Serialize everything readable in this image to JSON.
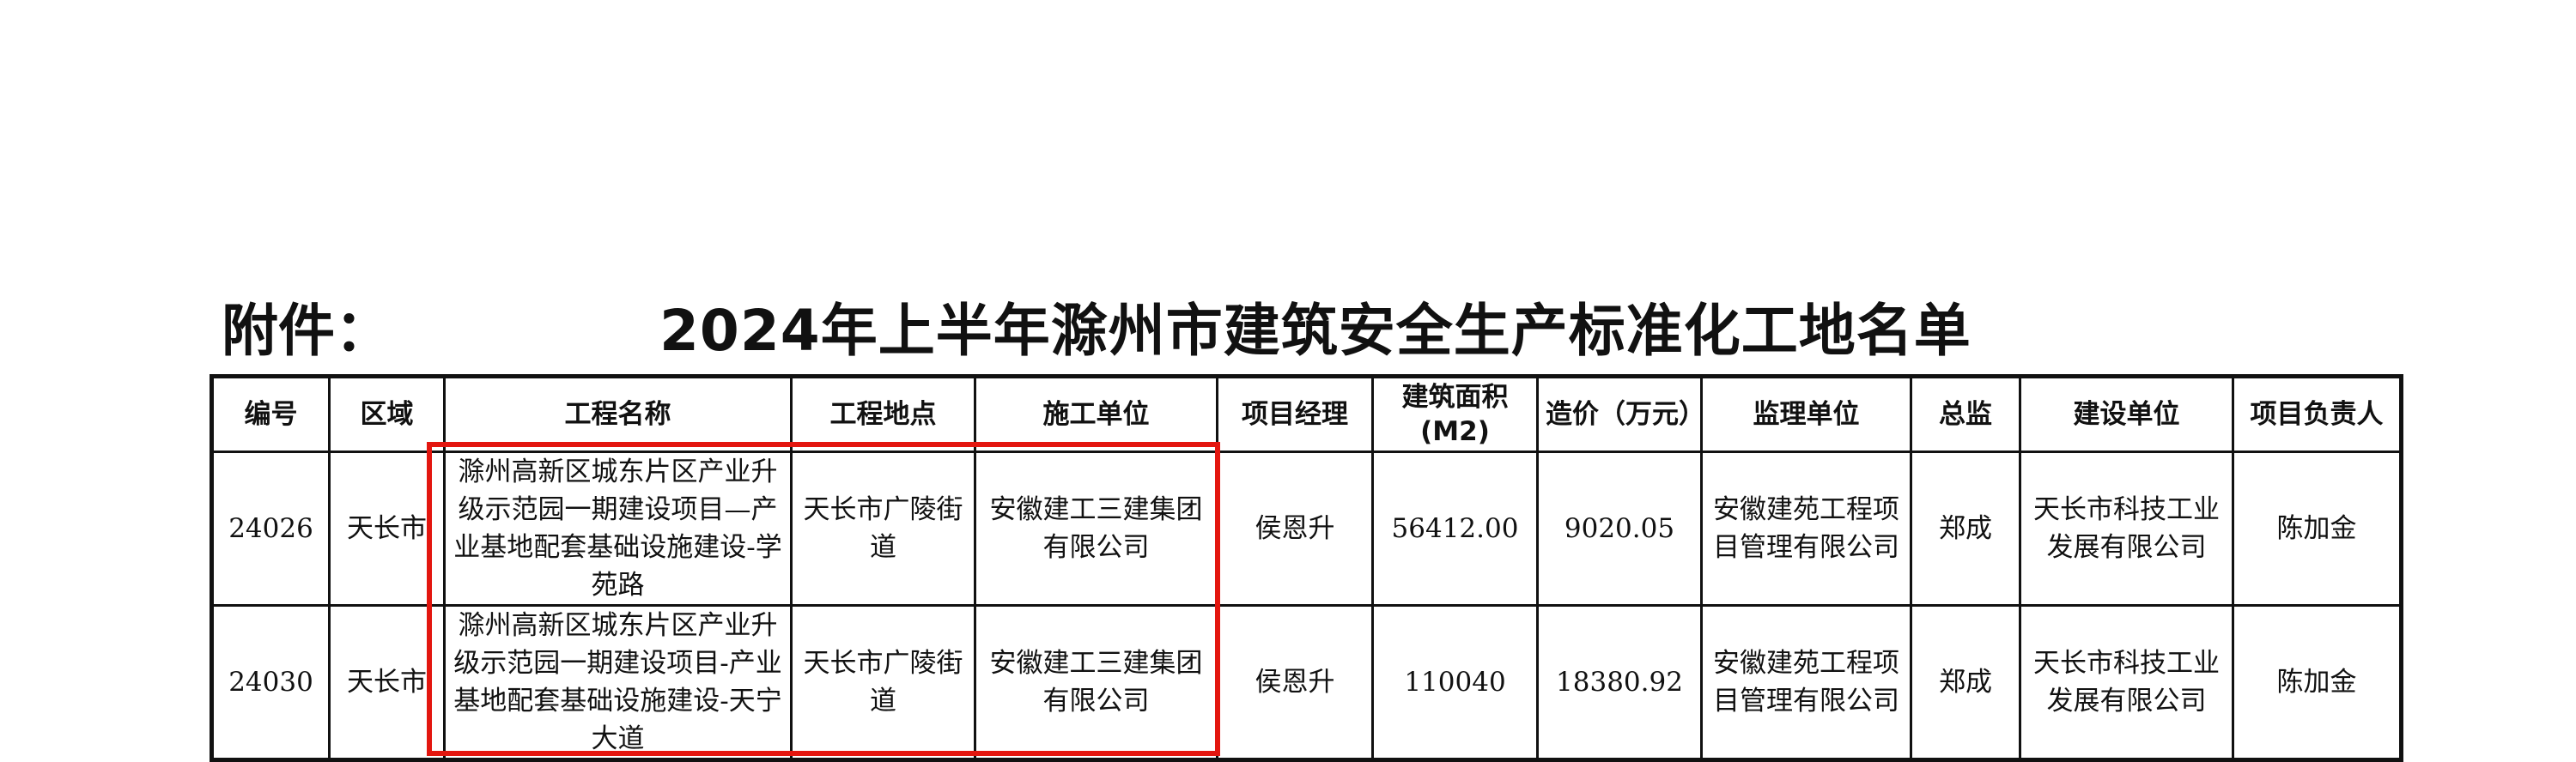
{
  "header": {
    "prefix": "附件：",
    "title": "2024年上半年滁州市建筑安全生产标准化工地名单"
  },
  "table": {
    "columns": [
      "编号",
      "区域",
      "工程名称",
      "工程地点",
      "施工单位",
      "项目经理",
      "建筑面积(M2)",
      "造价（万元）",
      "监理单位",
      "总监",
      "建设单位",
      "项目负责人"
    ],
    "rows": [
      {
        "id": "24026",
        "area": "天长市",
        "name": "滁州高新区城东片区产业升级示范园一期建设项目—产业基地配套基础设施建设-学苑路",
        "location": "天长市广陵街道",
        "contractor": "安徽建工三建集团有限公司",
        "manager": "侯恩升",
        "building_area": "56412.00",
        "cost": "9020.05",
        "supervisor": "安徽建苑工程项目管理有限公司",
        "chief_supervisor": "郑成",
        "developer": "天长市科技工业发展有限公司",
        "owner_lead": "陈加金"
      },
      {
        "id": "24030",
        "area": "天长市",
        "name": "滁州高新区城东片区产业升级示范园一期建设项目-产业基地配套基础设施建设-天宁大道",
        "location": "天长市广陵街道",
        "contractor": "安徽建工三建集团有限公司",
        "manager": "侯恩升",
        "building_area": "110040",
        "cost": "18380.92",
        "supervisor": "安徽建苑工程项目管理有限公司",
        "chief_supervisor": "郑成",
        "developer": "天长市科技工业发展有限公司",
        "owner_lead": "陈加金"
      }
    ]
  },
  "highlight_color": "#e3160f"
}
